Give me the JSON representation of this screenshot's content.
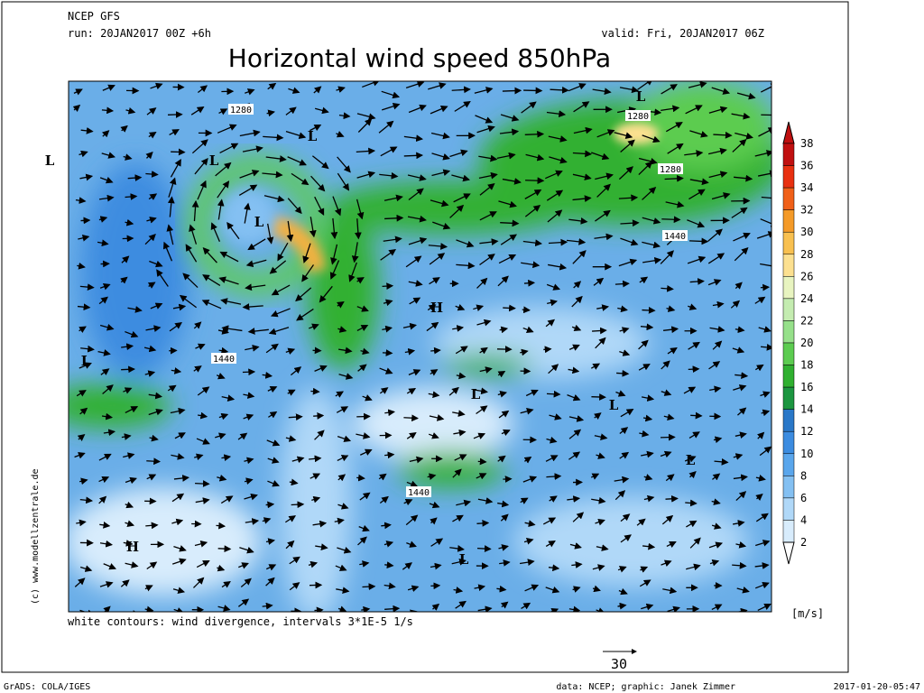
{
  "header": {
    "model": "NCEP GFS",
    "run": "run: 20JAN2017 00Z +6h",
    "valid": "valid: Fri, 20JAN2017 06Z",
    "title": "Horizontal wind speed 850hPa"
  },
  "map": {
    "labels": [
      "L",
      "L",
      "L",
      "L",
      "L",
      "L",
      "H",
      "L",
      "L",
      "L",
      "H",
      "L",
      "1280",
      "1280",
      "1280",
      "1440",
      "1440",
      "1440"
    ]
  },
  "colorbar": {
    "labels": [
      38,
      36,
      34,
      32,
      30,
      28,
      26,
      24,
      22,
      20,
      18,
      16,
      14,
      12,
      10,
      8,
      6,
      4,
      2
    ],
    "colors": [
      "#c01010",
      "#e83010",
      "#f06018",
      "#f49a28",
      "#f8c050",
      "#fce090",
      "#e8f4c0",
      "#c4ecb0",
      "#96e08a",
      "#5ccc50",
      "#30b030",
      "#1c9640",
      "#2a78c8",
      "#3c8ce0",
      "#5aa6ec",
      "#84c0f2",
      "#b0d8f8",
      "#d8ecfc"
    ],
    "unit": "[m/s]"
  },
  "footer": {
    "note": "white contours: wind divergence, intervals 3*1E-5 1/s",
    "reference": "30",
    "software": "GrADS: COLA/IGES",
    "credit": "data: NCEP; graphic: Janek Zimmer",
    "timestamp": "2017-01-20-05:47",
    "copyright": "(c) www.modellzentrale.de"
  }
}
